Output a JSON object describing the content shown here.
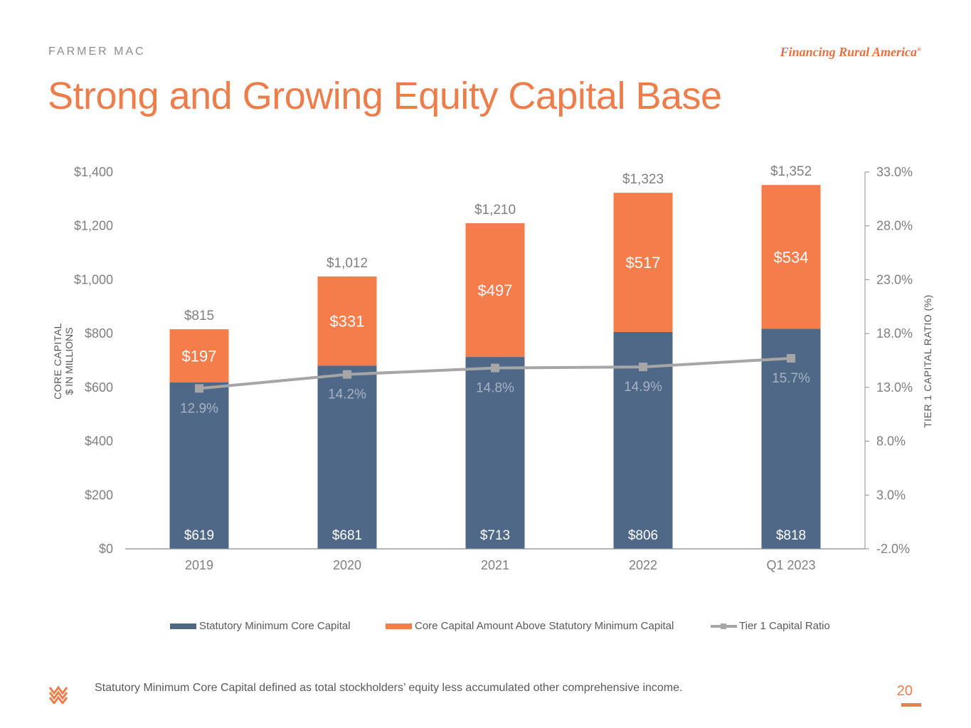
{
  "header": {
    "brand": "FARMER MAC",
    "tagline": "Financing Rural America",
    "tagline_mark": "®",
    "title": "Strong and Growing Equity Capital Base"
  },
  "colors": {
    "accent": "#ed7d4a",
    "bar_bottom": "#4f6887",
    "bar_top": "#f47d4b",
    "line": "#a6a6a6",
    "text_gray": "#7f7f7f"
  },
  "chart_data": {
    "type": "bar",
    "stacked": true,
    "categories": [
      "2019",
      "2020",
      "2021",
      "2022",
      "Q1 2023"
    ],
    "series": [
      {
        "name": "Statutory Minimum Core Capital",
        "values": [
          619,
          681,
          713,
          806,
          818
        ],
        "labels": [
          "$619",
          "$681",
          "$713",
          "$806",
          "$818"
        ]
      },
      {
        "name": "Core Capital Amount Above Statutory Minimum Capital",
        "values": [
          197,
          331,
          497,
          517,
          534
        ],
        "labels": [
          "$197",
          "$331",
          "$497",
          "$517",
          "$534"
        ]
      }
    ],
    "line_series": {
      "name": "Tier 1 Capital Ratio",
      "axis": "right",
      "values": [
        12.9,
        14.2,
        14.8,
        14.9,
        15.7
      ],
      "labels": [
        "12.9%",
        "14.2%",
        "14.8%",
        "14.9%",
        "15.7%"
      ]
    },
    "totals": [
      815,
      1012,
      1210,
      1323,
      1352
    ],
    "total_labels": [
      "$815",
      "$1,012",
      "$1,210",
      "$1,323",
      "$1,352"
    ],
    "ylabel": "CORE CAPITAL",
    "ylabel_sub": "$ IN MILLIONS",
    "ylim": [
      0,
      1400
    ],
    "yticks": [
      0,
      200,
      400,
      600,
      800,
      1000,
      1200,
      1400
    ],
    "ytick_labels": [
      "$0",
      "$200",
      "$400",
      "$600",
      "$800",
      "$1,000",
      "$1,200",
      "$1,400"
    ],
    "y2label": "TIER 1 CAPITAL RATIO (%)",
    "y2lim": [
      -2,
      33
    ],
    "y2ticks": [
      -2,
      3,
      8,
      13,
      18,
      23,
      28,
      33
    ],
    "y2tick_labels": [
      "-2.0%",
      "3.0%",
      "8.0%",
      "13.0%",
      "18.0%",
      "23.0%",
      "28.0%",
      "33.0%"
    ],
    "legend": "bottom"
  },
  "legend": {
    "items": [
      "Statutory Minimum Core Capital",
      "Core Capital Amount Above Statutory Minimum Capital",
      "Tier 1 Capital Ratio"
    ]
  },
  "footer": {
    "note": "Statutory Minimum Core Capital defined as total stockholders’ equity less accumulated other comprehensive income.",
    "page_number": "20"
  }
}
